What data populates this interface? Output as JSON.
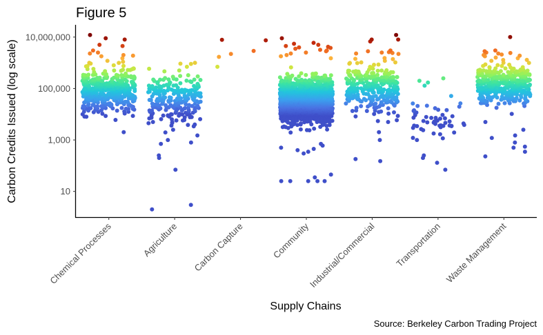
{
  "chart_data": {
    "type": "scatter",
    "subtype": "jitter-strip",
    "title": "Figure 5",
    "xlabel": "Supply Chains",
    "ylabel": "Carbon Credits Issued (log scale)",
    "caption": "Source: Berkeley Carbon Trading Project",
    "yscale": "log10",
    "ylim": [
      1.0,
      30000000
    ],
    "yticks": [
      10,
      1000,
      100000,
      10000000
    ],
    "ytick_labels": [
      "10",
      "1,000",
      "100,000",
      "10,000,000"
    ],
    "categories": [
      "Chemical Processes",
      "Agriculture",
      "Carbon Capture",
      "Community",
      "Industrial/Commercial",
      "Transportation",
      "Waste Management"
    ],
    "color_scale": {
      "variable": "Carbon Credits Issued",
      "palette": "turbo",
      "stops": [
        "#3f4fc9",
        "#4a73e3",
        "#3ba0ee",
        "#22c6dc",
        "#3be3a4",
        "#8df35f",
        "#d8e33c",
        "#fdb33a",
        "#f06a21",
        "#c0260c",
        "#7a0403"
      ]
    },
    "groups": [
      {
        "category": "Chemical Processes",
        "n": 440,
        "log_median": 4.9,
        "log_sd": 0.38,
        "extremes": [
          12000000,
          9000000,
          8000000,
          5000000,
          4500000,
          3000000,
          2500000,
          2300000,
          2000000,
          1800000,
          1500000,
          1200000,
          1100000,
          2000,
          6000,
          8000,
          12000
        ]
      },
      {
        "category": "Agriculture",
        "n": 230,
        "log_median": 4.6,
        "log_sd": 0.5,
        "extremes": [
          1000000,
          900000,
          700000,
          500000,
          2,
          3,
          70,
          200,
          250,
          700,
          800,
          1000,
          1500,
          2500,
          4000,
          5000
        ]
      },
      {
        "category": "Carbon Capture",
        "n": 0,
        "log_median": 6.6,
        "log_sd": 0.3,
        "extremes": [
          7500000,
          7800000,
          2900000,
          2200000,
          1700000,
          700000
        ]
      },
      {
        "category": "Community",
        "n": 1500,
        "log_median": 4.5,
        "log_sd": 0.42,
        "extremes": [
          9000000,
          6000000,
          5500000,
          5000000,
          4500000,
          4200000,
          4000000,
          3800000,
          3500000,
          3200000,
          3000000,
          2800000,
          2500000,
          2300000,
          2000000,
          1800000,
          1500000,
          25,
          25,
          25,
          25,
          25,
          45,
          35,
          300,
          350,
          400,
          450,
          500,
          600,
          700
        ]
      },
      {
        "category": "Industrial/Commercial",
        "n": 300,
        "log_median": 5.0,
        "log_sd": 0.45,
        "extremes": [
          12000000,
          8000000,
          8000000,
          6800000,
          3000000,
          2800000,
          2600000,
          2500000,
          2400000,
          2300000,
          2200000,
          1400000,
          1200000,
          150,
          180,
          1000,
          2000,
          5000
        ]
      },
      {
        "category": "Transportation",
        "n": 50,
        "log_median": 3.8,
        "log_sd": 0.45,
        "extremes": [
          250000,
          200000,
          170000,
          130000,
          70,
          130,
          200,
          250
        ]
      },
      {
        "category": "Waste Management",
        "n": 420,
        "log_median": 5.15,
        "log_sd": 0.35,
        "extremes": [
          10000000,
          3000000,
          2800000,
          2500000,
          2400000,
          2300000,
          2100000,
          2000000,
          1900000,
          1800000,
          1600000,
          1500000,
          1300000,
          1200000,
          230,
          350,
          500,
          550,
          800,
          1200,
          1500,
          2500,
          5000
        ]
      }
    ]
  }
}
